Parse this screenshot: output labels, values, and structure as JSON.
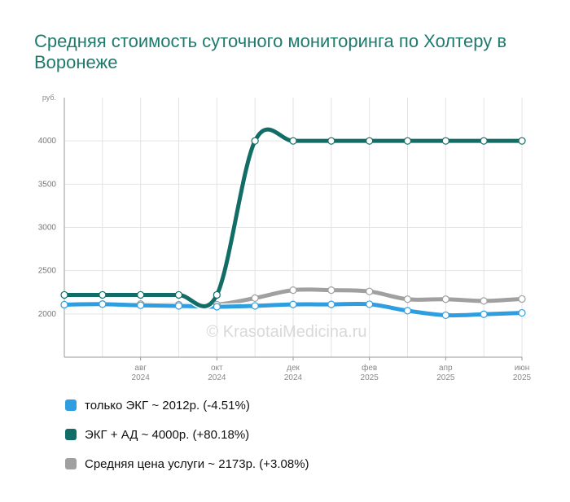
{
  "title": "Средняя стоимость суточного мониторинга по Холтеру в Воронеже",
  "watermark": "© KrasotaiMedicina.ru",
  "legend": [
    {
      "text": "только ЭКГ ~ 2012р. (-4.51%)",
      "color": "#2f9ee0"
    },
    {
      "text": "ЭКГ + АД ~ 4000р. (+80.18%)",
      "color": "#126d66"
    },
    {
      "text": "Средняя цена услуги ~ 2173р. (+3.08%)",
      "color": "#a0a0a0"
    }
  ],
  "chart_data": {
    "type": "line",
    "yunit": "руб.",
    "ylim": [
      1500,
      4500
    ],
    "yticks": [
      2000,
      2500,
      3000,
      3500,
      4000
    ],
    "x": [
      "2024-06",
      "2024-07",
      "2024-08",
      "2024-09",
      "2024-10",
      "2024-11",
      "2024-12",
      "2025-01",
      "2025-02",
      "2025-03",
      "2025-04",
      "2025-05",
      "2025-06"
    ],
    "xticks": [
      {
        "month": "авг",
        "year": "2024"
      },
      {
        "month": "окт",
        "year": "2024"
      },
      {
        "month": "дек",
        "year": "2024"
      },
      {
        "month": "фев",
        "year": "2025"
      },
      {
        "month": "апр",
        "year": "2025"
      },
      {
        "month": "июн",
        "year": "2025"
      }
    ],
    "grid": true,
    "series": [
      {
        "name": "только ЭКГ",
        "color": "#2f9ee0",
        "values": [
          2107,
          2113,
          2100,
          2093,
          2083,
          2093,
          2110,
          2110,
          2112,
          2037,
          1985,
          1996,
          2012
        ]
      },
      {
        "name": "ЭКГ + АД",
        "color": "#126d66",
        "values": [
          2220,
          2220,
          2220,
          2220,
          2220,
          4000,
          4000,
          4000,
          4000,
          4000,
          4000,
          4000,
          4000
        ]
      },
      {
        "name": "Средняя цена услуги",
        "color": "#a0a0a0",
        "values": [
          2107,
          2115,
          2115,
          2108,
          2108,
          2183,
          2275,
          2275,
          2260,
          2170,
          2170,
          2150,
          2173
        ]
      }
    ]
  }
}
